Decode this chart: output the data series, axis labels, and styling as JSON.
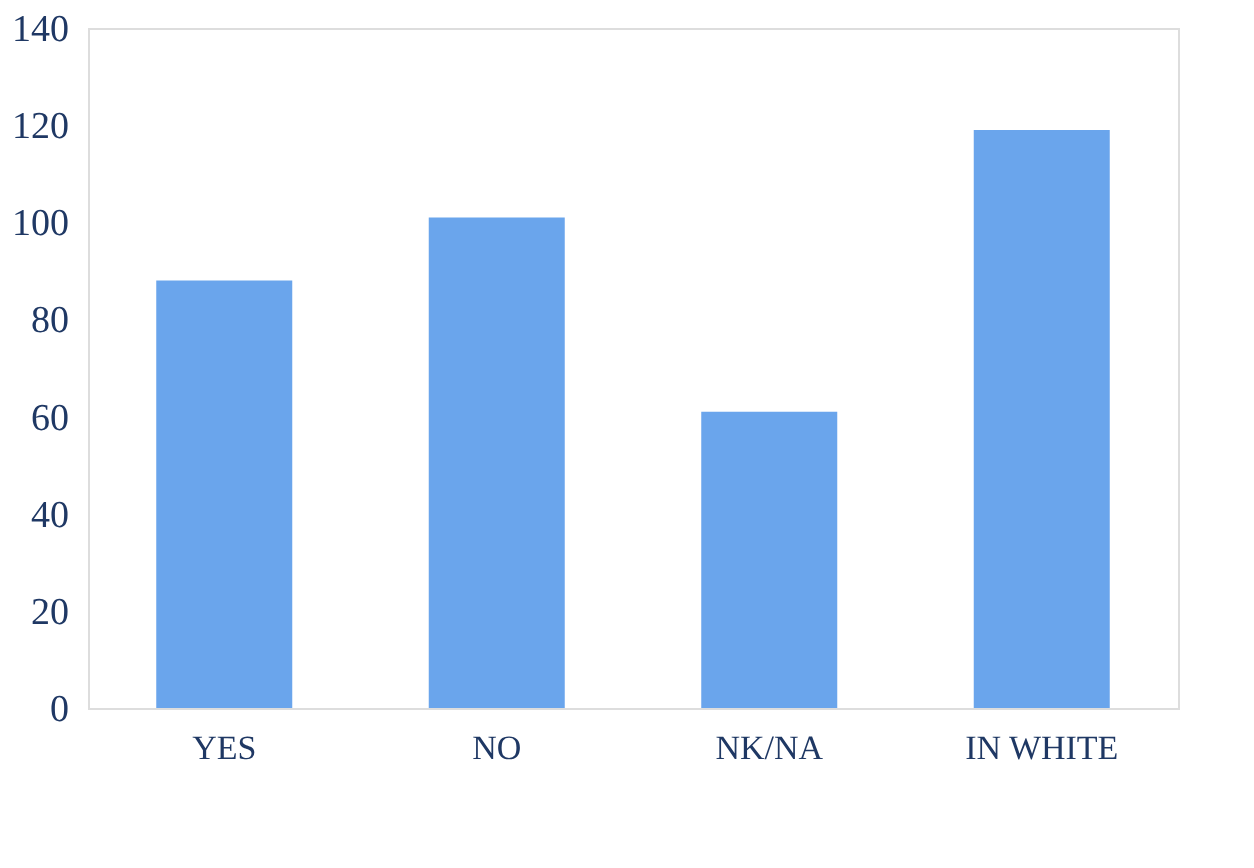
{
  "chart_data": {
    "type": "bar",
    "categories": [
      "YES",
      "NO",
      "NK/NA",
      "IN WHITE"
    ],
    "values": [
      88,
      101,
      61,
      119
    ],
    "color": "#6aa5ec",
    "ylim": [
      0,
      140
    ],
    "yticks": [
      0,
      20,
      40,
      60,
      80,
      100,
      120,
      140
    ],
    "grid": false
  }
}
